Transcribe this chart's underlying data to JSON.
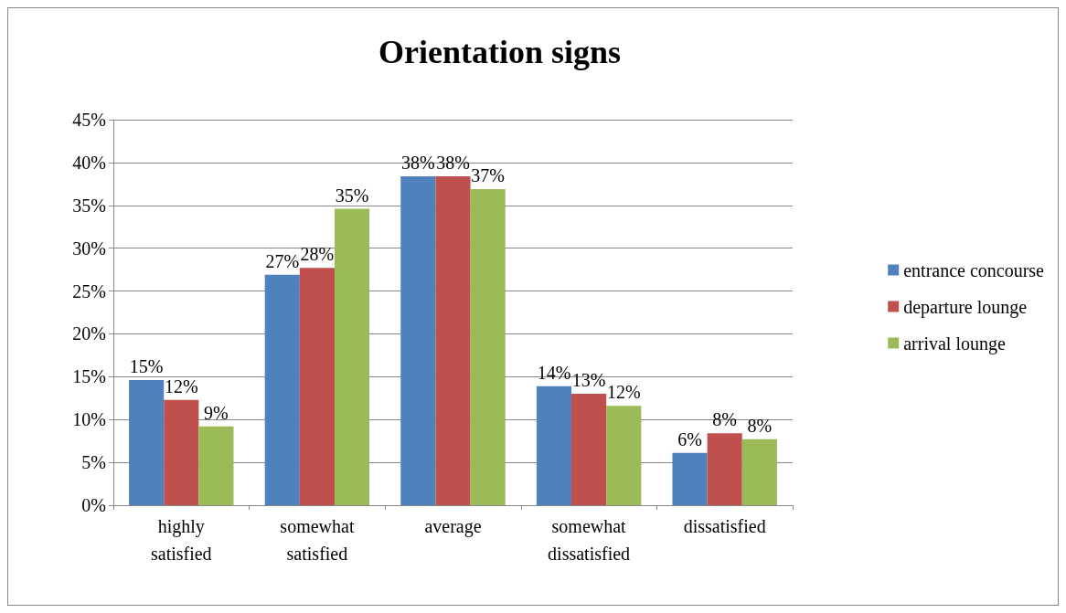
{
  "chart_data": {
    "type": "bar",
    "title": "Orientation signs",
    "categories": [
      "highly\nsatisfied",
      "somewhat\nsatisfied",
      "average",
      "somewhat\ndissatisfied",
      "dissatisfied"
    ],
    "series": [
      {
        "name": "entrance concourse",
        "color": "#4f81bd",
        "values": [
          14.6,
          26.9,
          38.4,
          13.9,
          6.1
        ],
        "value_labels": [
          "15%",
          "27%",
          "38%",
          "14%",
          "6%"
        ]
      },
      {
        "name": "departure lounge",
        "color": "#c0504d",
        "values": [
          12.3,
          27.7,
          38.4,
          13.0,
          8.4
        ],
        "value_labels": [
          "12%",
          "28%",
          "38%",
          "13%",
          "8%"
        ]
      },
      {
        "name": "arrival lounge",
        "color": "#9bbb59",
        "values": [
          9.2,
          34.6,
          36.9,
          11.6,
          7.7
        ],
        "value_labels": [
          "9%",
          "35%",
          "37%",
          "12%",
          "8%"
        ]
      }
    ],
    "ylim": [
      0,
      45
    ],
    "yticks": [
      {
        "value": 0,
        "label": "0%"
      },
      {
        "value": 5,
        "label": "5%"
      },
      {
        "value": 10,
        "label": "10%"
      },
      {
        "value": 15,
        "label": "15%"
      },
      {
        "value": 20,
        "label": "20%"
      },
      {
        "value": 25,
        "label": "25%"
      },
      {
        "value": 30,
        "label": "30%"
      },
      {
        "value": 35,
        "label": "35%"
      },
      {
        "value": 40,
        "label": "40%"
      },
      {
        "value": 45,
        "label": "45%"
      }
    ],
    "grid": "y",
    "legend": "right"
  }
}
